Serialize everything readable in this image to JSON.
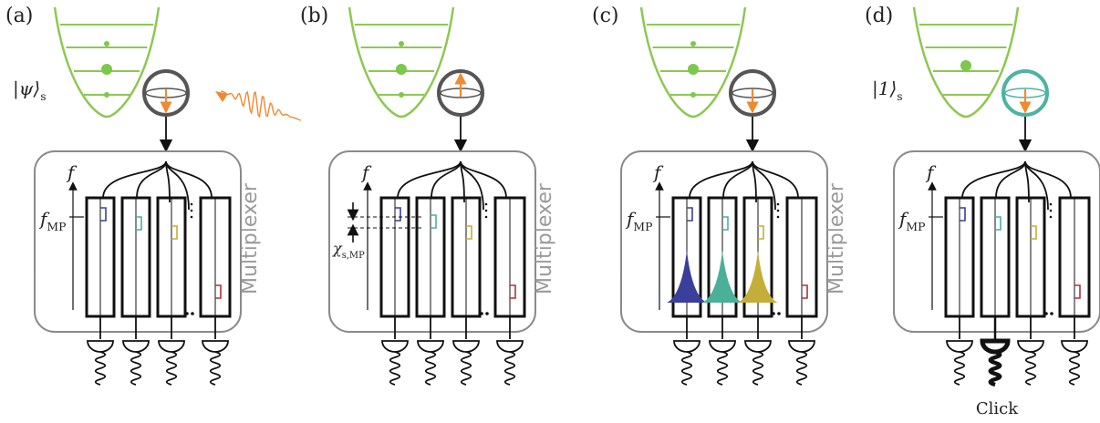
{
  "panels": [
    {
      "label": "(a)",
      "state_label": "|ψ⟩",
      "state_sub": "s",
      "fmp": "f",
      "fmp_sub": "MP",
      "mux": "Multiplexer",
      "f_axis": "f"
    },
    {
      "label": "(b)",
      "chi": "χ",
      "chi_sub": "s,MP",
      "mux": "Multiplexer",
      "f_axis": "f"
    },
    {
      "label": "(c)",
      "fmp": "f",
      "fmp_sub": "MP",
      "mux": "Multiplexer",
      "f_axis": "f"
    },
    {
      "label": "(d)",
      "state_label": "|1⟩",
      "state_sub": "s",
      "fmp": "f",
      "fmp_sub": "MP",
      "mux": "Multiplexer",
      "f_axis": "f",
      "click": "Click"
    }
  ],
  "colors": {
    "oscillator": "#8cc850",
    "oscillator_dot": "#7cc84a",
    "qubit": "#555555",
    "qubit_excited_ring": "#4db3a2",
    "arrow": "#f08a30",
    "box": "#8a8a8a",
    "resonator_1": "#3a3f9a",
    "resonator_2": "#4ab09a",
    "resonator_3": "#c4ae3a",
    "resonator_4": "#b0303a"
  }
}
